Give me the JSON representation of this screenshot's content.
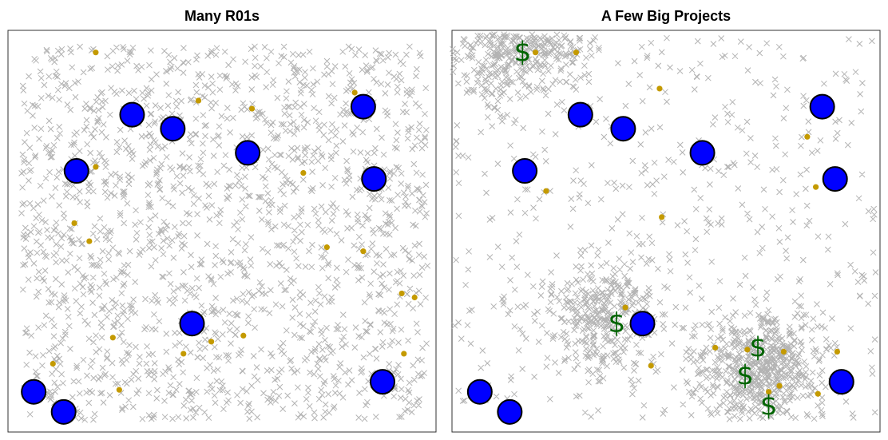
{
  "colors": {
    "background_points": "#b3b3b3",
    "target": "#0000ff",
    "target_outline": "#000000",
    "small_dot": "#c49a00",
    "dollar": "#006400"
  },
  "chart_data": [
    {
      "type": "scatter",
      "title": "Many R01s",
      "xlim": [
        0,
        1
      ],
      "ylim": [
        0,
        1
      ],
      "grid": false,
      "background_points": {
        "marker": "x",
        "distribution": "uniform",
        "count_approx": 1800,
        "xrange": [
          0.03,
          0.98
        ],
        "yrange": [
          0.03,
          0.96
        ]
      },
      "targets": [
        [
          0.29,
          0.79
        ],
        [
          0.385,
          0.755
        ],
        [
          0.56,
          0.695
        ],
        [
          0.83,
          0.81
        ],
        [
          0.16,
          0.65
        ],
        [
          0.855,
          0.63
        ],
        [
          0.43,
          0.27
        ],
        [
          0.06,
          0.1
        ],
        [
          0.13,
          0.05
        ],
        [
          0.875,
          0.125
        ]
      ],
      "small_dots": [
        [
          0.205,
          0.945
        ],
        [
          0.445,
          0.825
        ],
        [
          0.57,
          0.805
        ],
        [
          0.81,
          0.845
        ],
        [
          0.55,
          0.695
        ],
        [
          0.205,
          0.66
        ],
        [
          0.69,
          0.645
        ],
        [
          0.155,
          0.52
        ],
        [
          0.19,
          0.475
        ],
        [
          0.745,
          0.46
        ],
        [
          0.83,
          0.45
        ],
        [
          0.92,
          0.345
        ],
        [
          0.95,
          0.335
        ],
        [
          0.245,
          0.235
        ],
        [
          0.475,
          0.225
        ],
        [
          0.55,
          0.24
        ],
        [
          0.41,
          0.195
        ],
        [
          0.925,
          0.195
        ],
        [
          0.105,
          0.17
        ],
        [
          0.26,
          0.105
        ]
      ],
      "dollars": []
    },
    {
      "type": "scatter",
      "title": "A Few Big Projects",
      "xlim": [
        0,
        1
      ],
      "ylim": [
        0,
        1
      ],
      "grid": false,
      "background_points": {
        "marker": "x",
        "distribution": "clustered",
        "count_approx": 1800,
        "clusters": [
          {
            "center": [
              0.14,
              0.97
            ],
            "sd": [
              0.09,
              0.07
            ],
            "weight": 0.17
          },
          {
            "center": [
              0.35,
              0.29
            ],
            "sd": [
              0.07,
              0.07
            ],
            "weight": 0.2
          },
          {
            "center": [
              0.72,
              0.15
            ],
            "sd": [
              0.07,
              0.07
            ],
            "weight": 0.33
          }
        ],
        "uniform_weight": 0.3,
        "xrange": [
          0.0,
          0.99
        ],
        "yrange": [
          0.03,
          0.99
        ]
      },
      "targets": [
        [
          0.3,
          0.79
        ],
        [
          0.4,
          0.755
        ],
        [
          0.585,
          0.695
        ],
        [
          0.865,
          0.81
        ],
        [
          0.17,
          0.65
        ],
        [
          0.895,
          0.63
        ],
        [
          0.445,
          0.27
        ],
        [
          0.065,
          0.1
        ],
        [
          0.135,
          0.05
        ],
        [
          0.91,
          0.125
        ]
      ],
      "small_dots": [
        [
          0.195,
          0.945
        ],
        [
          0.29,
          0.945
        ],
        [
          0.485,
          0.855
        ],
        [
          0.83,
          0.735
        ],
        [
          0.85,
          0.61
        ],
        [
          0.22,
          0.6
        ],
        [
          0.49,
          0.535
        ],
        [
          0.405,
          0.31
        ],
        [
          0.615,
          0.21
        ],
        [
          0.69,
          0.205
        ],
        [
          0.775,
          0.2
        ],
        [
          0.9,
          0.2
        ],
        [
          0.465,
          0.165
        ],
        [
          0.765,
          0.115
        ],
        [
          0.74,
          0.1
        ],
        [
          0.855,
          0.095
        ]
      ],
      "dollars": [
        [
          0.165,
          0.945
        ],
        [
          0.385,
          0.27
        ],
        [
          0.715,
          0.21
        ],
        [
          0.685,
          0.14
        ],
        [
          0.74,
          0.065
        ]
      ],
      "dollar_symbol": "$"
    }
  ]
}
